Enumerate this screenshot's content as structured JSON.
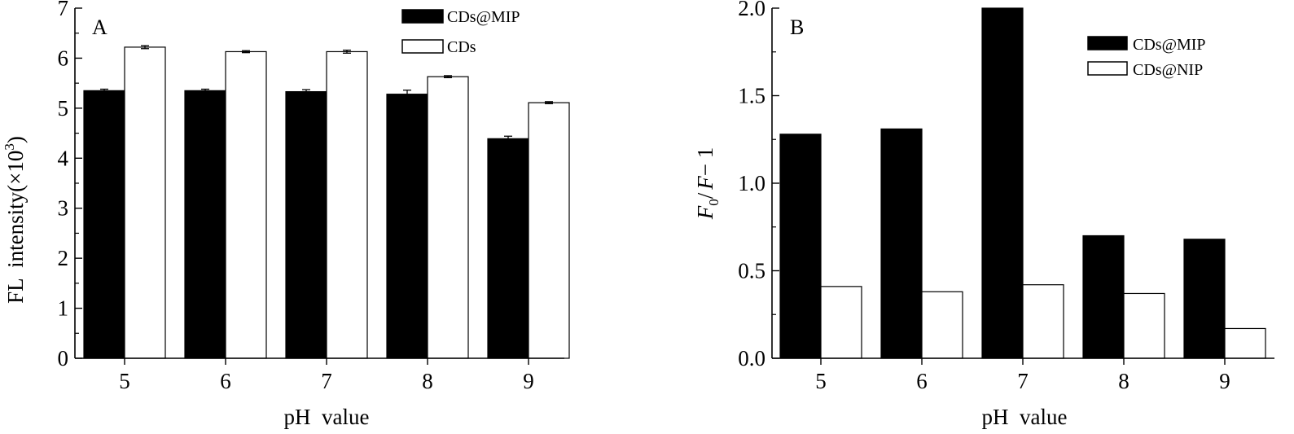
{
  "chart_data": [
    {
      "type": "bar",
      "panel_label": "A",
      "categories": [
        "5",
        "6",
        "7",
        "8",
        "9"
      ],
      "series": [
        {
          "name": "CDs@MIP",
          "color": "#000000",
          "values": [
            5.35,
            5.35,
            5.33,
            5.28,
            4.39
          ],
          "errors": [
            0.03,
            0.03,
            0.04,
            0.08,
            0.05
          ]
        },
        {
          "name": "CDs",
          "color": "#ffffff",
          "values": [
            6.22,
            6.13,
            6.13,
            5.63,
            5.11
          ],
          "errors": [
            0.03,
            0.02,
            0.03,
            0.02,
            0.02
          ]
        }
      ],
      "xlabel": "pH  value",
      "ylabel_main": "FL  intensity(×10",
      "ylabel_sup": "3",
      "ylabel_tail": ")",
      "ylim": [
        0,
        7
      ],
      "yticks": [
        "0",
        "1",
        "2",
        "3",
        "4",
        "5",
        "6",
        "7"
      ],
      "legend_placement": "top-right",
      "grid": false,
      "error_bars": true
    },
    {
      "type": "bar",
      "panel_label": "B",
      "categories": [
        "5",
        "6",
        "7",
        "8",
        "9"
      ],
      "series": [
        {
          "name": "CDs@MIP",
          "color": "#000000",
          "values": [
            1.28,
            1.31,
            2.0,
            0.7,
            0.68
          ]
        },
        {
          "name": "CDs@NIP",
          "color": "#ffffff",
          "values": [
            0.41,
            0.38,
            0.42,
            0.37,
            0.17
          ]
        }
      ],
      "xlabel": "pH  value",
      "ylabel_f": "F",
      "ylabel_sub": "0",
      "ylabel_rest": "/",
      "ylabel_f2": "F",
      "ylabel_tail": "− 1",
      "ylim": [
        0,
        2.0
      ],
      "yticks": [
        "0.0",
        "0.5",
        "1.0",
        "1.5",
        "2.0"
      ],
      "legend_placement": "top-right",
      "grid": false,
      "error_bars": false
    }
  ]
}
